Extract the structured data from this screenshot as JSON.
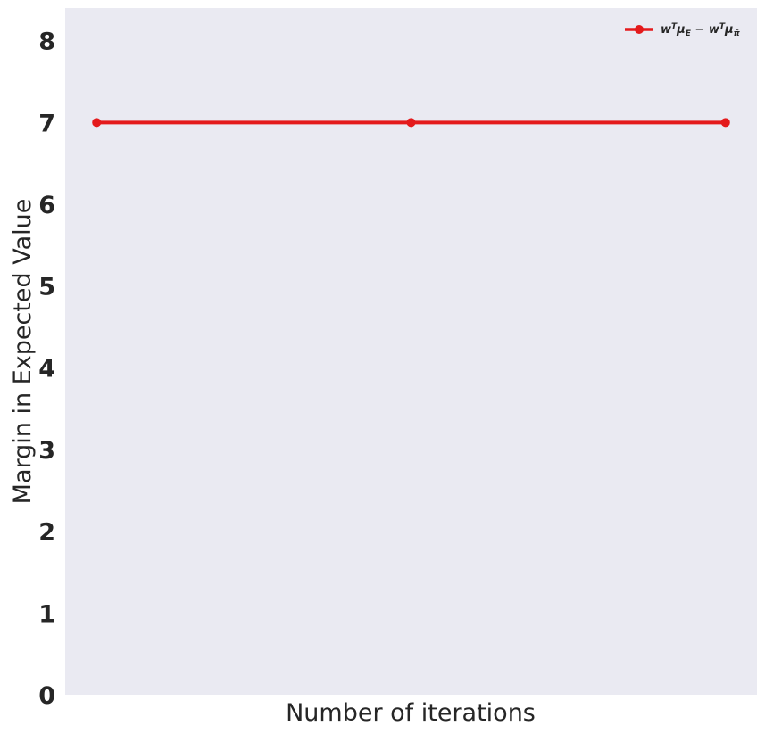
{
  "chart_data": {
    "type": "line",
    "title": "",
    "xlabel": "Number of iterations",
    "ylabel": "Margin in Expected Value",
    "x": [
      0,
      1,
      2
    ],
    "xlim": [
      -0.1,
      2.1
    ],
    "ylim": [
      0,
      8.4
    ],
    "yticks": [
      "0",
      "1",
      "2",
      "3",
      "4",
      "5",
      "6",
      "7",
      "8"
    ],
    "ytick_values": [
      0,
      1,
      2,
      3,
      4,
      5,
      6,
      7,
      8
    ],
    "grid": false,
    "legend_position": "top-right",
    "series": [
      {
        "name": "w^T μ_E − w^T μ_π̃",
        "values": [
          7,
          7,
          7
        ],
        "color": "#e41a1c",
        "marker": "circle"
      }
    ],
    "colors": {
      "plot_background": "#eaeaf2",
      "text": "#262626"
    }
  }
}
